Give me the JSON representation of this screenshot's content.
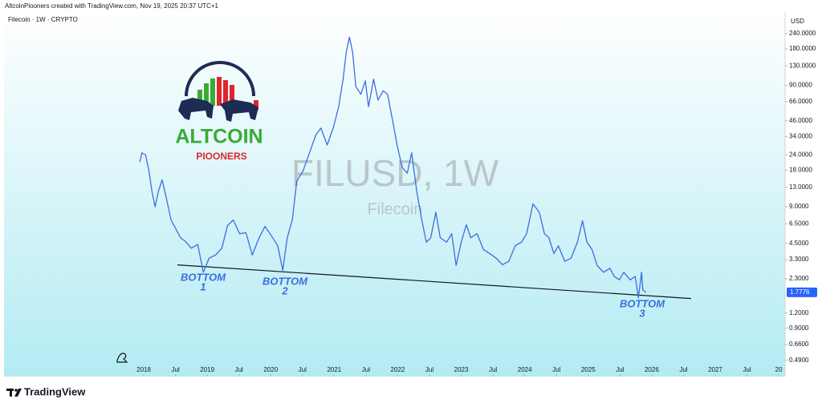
{
  "header": "AltcoinPiooners created with TradingView.com, Nov 19, 2025 20:37 UTC+1",
  "symbol_info": "Filecoin · 1W · CRYPTO",
  "currency": "USD",
  "watermark_title": "FILUSD, 1W",
  "watermark_subtitle": "Filecoin",
  "logo_title": "ALTCOIN",
  "logo_subtitle": "PIOONERS",
  "footer_brand": "TradingView",
  "chart_data": {
    "type": "line",
    "log_scale": true,
    "grid": false,
    "color": "#3b6ee0",
    "x": [
      2017.94,
      2017.97,
      2018.03,
      2018.08,
      2018.13,
      2018.18,
      2018.23,
      2018.29,
      2018.35,
      2018.43,
      2018.5,
      2018.58,
      2018.65,
      2018.75,
      2018.85,
      2018.94,
      2019.03,
      2019.13,
      2019.23,
      2019.32,
      2019.41,
      2019.51,
      2019.61,
      2019.71,
      2019.81,
      2019.91,
      2020.01,
      2020.11,
      2020.19,
      2020.26,
      2020.34,
      2020.41,
      2020.51,
      2020.61,
      2020.71,
      2020.79,
      2020.89,
      2020.99,
      2021.07,
      2021.14,
      2021.19,
      2021.24,
      2021.29,
      2021.34,
      2021.42,
      2021.49,
      2021.54,
      2021.62,
      2021.69,
      2021.77,
      2021.84,
      2021.92,
      2021.99,
      2022.07,
      2022.15,
      2022.22,
      2022.3,
      2022.37,
      2022.45,
      2022.52,
      2022.6,
      2022.67,
      2022.77,
      2022.85,
      2022.92,
      2023.0,
      2023.08,
      2023.15,
      2023.25,
      2023.35,
      2023.45,
      2023.55,
      2023.65,
      2023.75,
      2023.85,
      2023.95,
      2024.03,
      2024.13,
      2024.23,
      2024.31,
      2024.38,
      2024.46,
      2024.53,
      2024.63,
      2024.73,
      2024.83,
      2024.91,
      2024.98,
      2025.06,
      2025.14,
      2025.24,
      2025.34,
      2025.41,
      2025.49,
      2025.56,
      2025.66,
      2025.74,
      2025.79,
      2025.84,
      2025.86,
      2025.91
    ],
    "values": [
      21,
      25,
      24,
      18,
      12,
      9,
      12,
      15,
      11,
      7,
      6,
      5,
      4.7,
      4.1,
      4.4,
      2.6,
      3.4,
      3.6,
      4.1,
      6.3,
      7,
      5.4,
      5.5,
      3.6,
      4.9,
      6.2,
      5.2,
      4.3,
      2.7,
      5,
      7,
      14.6,
      17.8,
      25,
      35,
      40,
      29,
      41,
      60,
      101,
      170,
      224,
      168,
      88,
      76,
      98,
      60,
      101,
      68,
      81,
      76,
      46,
      29,
      19,
      17,
      25,
      12,
      7.4,
      4.6,
      5,
      8.1,
      5,
      4.6,
      5.4,
      2.96,
      4.6,
      6.4,
      5,
      5.4,
      4,
      3.7,
      3.4,
      3,
      3.2,
      4.3,
      4.6,
      5.4,
      9.5,
      8.1,
      5.4,
      5,
      3.7,
      4.3,
      3.2,
      3.4,
      4.6,
      6.9,
      4.6,
      4,
      2.96,
      2.6,
      2.8,
      2.4,
      2.25,
      2.6,
      2.25,
      2.4,
      1.6,
      2.6,
      1.86,
      1.7776
    ],
    "xlim": [
      2015.8,
      2028.1
    ],
    "xticks": [
      2018,
      {
        "value": 2018.5,
        "label": "Jul"
      },
      2019,
      {
        "value": 2019.5,
        "label": "Jul"
      },
      2020,
      {
        "value": 2020.5,
        "label": "Jul"
      },
      2021,
      {
        "value": 2021.5,
        "label": "Jul"
      },
      2022,
      {
        "value": 2022.5,
        "label": "Jul"
      },
      2023,
      {
        "value": 2023.5,
        "label": "Jul"
      },
      2024,
      {
        "value": 2024.5,
        "label": "Jul"
      },
      2025,
      {
        "value": 2025.5,
        "label": "Jul"
      },
      2026,
      {
        "value": 2026.5,
        "label": "Jul"
      },
      2027,
      {
        "value": 2027.5,
        "label": "Jul"
      },
      {
        "value": 2028,
        "label": "20"
      }
    ],
    "ylim": [
      0.36,
      361
    ],
    "yticks": [
      {
        "value": 240,
        "label": "240.0000"
      },
      {
        "value": 180,
        "label": "180.0000"
      },
      {
        "value": 130,
        "label": "130.0000"
      },
      {
        "value": 90,
        "label": "90.0000"
      },
      {
        "value": 66,
        "label": "66.0000"
      },
      {
        "value": 46,
        "label": "46.0000"
      },
      {
        "value": 34,
        "label": "34.0000"
      },
      {
        "value": 24,
        "label": "24.0000"
      },
      {
        "value": 18,
        "label": "18.0000"
      },
      {
        "value": 13,
        "label": "13.0000"
      },
      {
        "value": 9,
        "label": "9.0000"
      },
      {
        "value": 6.5,
        "label": "6.5000"
      },
      {
        "value": 4.5,
        "label": "4.5000"
      },
      {
        "value": 3.3,
        "label": "3.3000"
      },
      {
        "value": 2.3,
        "label": "2.3000"
      },
      {
        "value": 1.2,
        "label": "1.2000"
      },
      {
        "value": 0.9,
        "label": "0.9000"
      },
      {
        "value": 0.66,
        "label": "0.6600"
      },
      {
        "value": 0.49,
        "label": "0.4900"
      }
    ],
    "last_price": 1.7776,
    "trendline": {
      "x": [
        2018.53,
        2026.62
      ],
      "values": [
        2.99,
        1.58
      ]
    },
    "annotations": [
      [
        "BOTTOM",
        "1"
      ],
      [
        "BOTTOM",
        "2"
      ],
      [
        "BOTTOM",
        "3"
      ]
    ]
  }
}
